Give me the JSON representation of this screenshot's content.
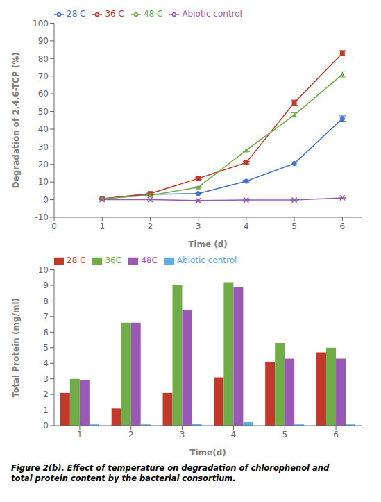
{
  "chart_data": [
    {
      "type": "line",
      "x": [
        1,
        2,
        3,
        4,
        5,
        6
      ],
      "xlabel": "Time (d)",
      "ylabel": "Degradation of 2,4,6-TCP (%)",
      "xlim": [
        0,
        6.4
      ],
      "xticks": [
        0,
        1,
        2,
        3,
        4,
        5,
        6
      ],
      "ylim": [
        -10,
        100
      ],
      "yticks": [
        -10,
        0,
        10,
        20,
        30,
        40,
        50,
        60,
        70,
        80,
        90,
        100
      ],
      "grid": false,
      "legend": "upper left",
      "series": [
        {
          "name": "28 C",
          "color": "#4472C4",
          "marker": "circle",
          "values": [
            0.5,
            3.0,
            3.5,
            10.5,
            20.5,
            46.0
          ],
          "errors": [
            0.2,
            0.2,
            0.2,
            0.5,
            0.8,
            1.5
          ]
        },
        {
          "name": "36 C",
          "color": "#C0392B",
          "marker": "square",
          "values": [
            0.5,
            3.5,
            12.0,
            21.0,
            55.0,
            83.0
          ],
          "errors": [
            0.2,
            0.3,
            0.5,
            0.7,
            1.5,
            1.5
          ]
        },
        {
          "name": "48 C",
          "color": "#70AD47",
          "marker": "triangle",
          "values": [
            0.5,
            2.5,
            7.0,
            28.0,
            48.0,
            71.0
          ],
          "errors": [
            0.2,
            0.2,
            0.4,
            0.8,
            1.2,
            1.5
          ]
        },
        {
          "name": "Abiotic control",
          "color": "#9B59B6",
          "marker": "cross",
          "values": [
            0.0,
            0.0,
            -0.5,
            -0.2,
            -0.2,
            1.0
          ],
          "errors": [
            0.05,
            0.05,
            0.05,
            0.05,
            0.05,
            0.1
          ]
        }
      ]
    },
    {
      "type": "bar",
      "categories": [
        "1",
        "2",
        "3",
        "4",
        "5",
        "6"
      ],
      "xlabel": "Time(d)",
      "ylabel": "Total Protein (mg/ml)",
      "ylim": [
        0,
        10
      ],
      "yticks": [
        0,
        1,
        2,
        3,
        4,
        5,
        6,
        7,
        8,
        9,
        10
      ],
      "grid": false,
      "legend": "upper left",
      "series": [
        {
          "name": "28 C",
          "color": "#C0392B",
          "values": [
            2.1,
            1.1,
            2.1,
            3.1,
            4.1,
            4.7
          ]
        },
        {
          "name": "36C",
          "color": "#70AD47",
          "values": [
            3.0,
            6.6,
            9.0,
            9.2,
            5.3,
            5.0
          ]
        },
        {
          "name": "48C",
          "color": "#9B59B6",
          "values": [
            2.9,
            6.6,
            7.4,
            8.9,
            4.3,
            4.3
          ]
        },
        {
          "name": "Abiotic control",
          "color": "#5DADE2",
          "values": [
            0.08,
            0.08,
            0.12,
            0.22,
            0.08,
            0.08
          ]
        }
      ]
    }
  ],
  "caption": "Figure 2(b). Effect of temperature on degradation of chlorophenol and\ntotal protein content by the bacterial consortium."
}
